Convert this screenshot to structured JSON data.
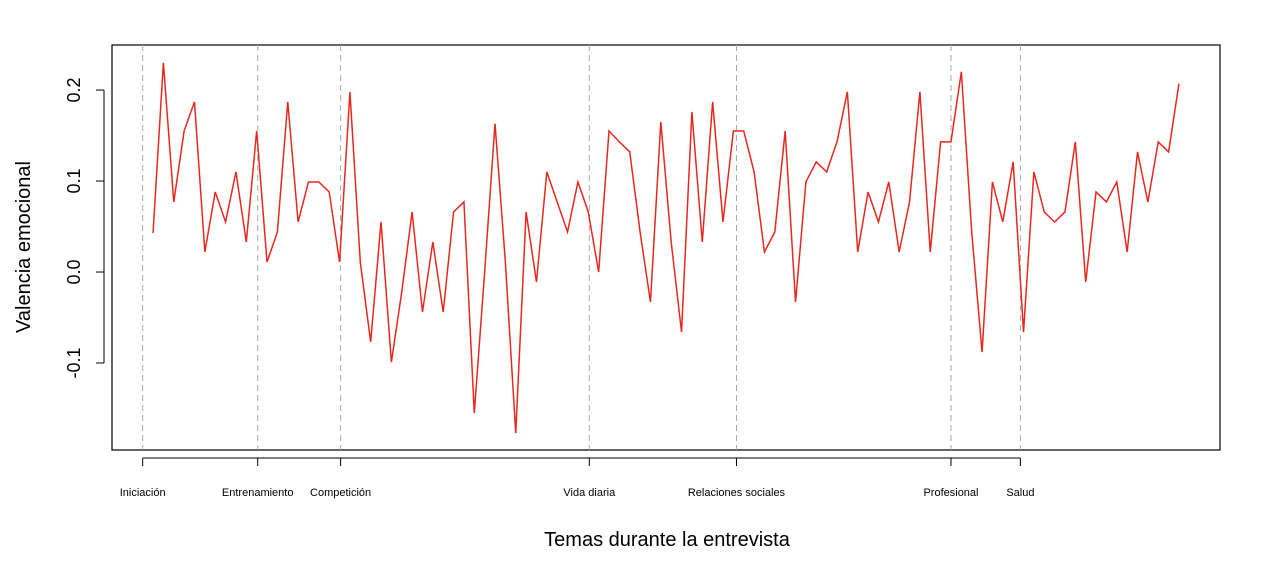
{
  "chart_data": {
    "type": "line",
    "xlabel": "Temas durante la entrevista",
    "ylabel": "Valencia emocional",
    "color": "#e8281f",
    "x": [
      1,
      2,
      3,
      4,
      5,
      6,
      7,
      8,
      9,
      10,
      11,
      12,
      13,
      14,
      15,
      16,
      17,
      18,
      19,
      20,
      21,
      22,
      23,
      24,
      25,
      26,
      27,
      28,
      29,
      30,
      31,
      32,
      33,
      34,
      35,
      36,
      37,
      38,
      39,
      40,
      41,
      42,
      43,
      44,
      45,
      46,
      47,
      48,
      49,
      50,
      51,
      52,
      53,
      54,
      55,
      56,
      57,
      58,
      59,
      60,
      61,
      62,
      63,
      64,
      65,
      66,
      67,
      68,
      69,
      70,
      71,
      72,
      73,
      74,
      75,
      76,
      77,
      78,
      79,
      80,
      81,
      82,
      83,
      84,
      85,
      86,
      87,
      88,
      89,
      90,
      91,
      92,
      93,
      94,
      95,
      96,
      97,
      98,
      99,
      100
    ],
    "values": [
      0.043,
      0.23,
      0.077,
      0.155,
      0.187,
      0.022,
      0.088,
      0.055,
      0.11,
      0.033,
      0.155,
      0.011,
      0.044,
      0.187,
      0.055,
      0.099,
      0.099,
      0.088,
      0.011,
      0.198,
      0.011,
      -0.077,
      0.055,
      -0.099,
      -0.022,
      0.066,
      -0.044,
      0.033,
      -0.044,
      0.066,
      0.077,
      -0.155,
      0.0,
      0.163,
      0.011,
      -0.177,
      0.066,
      -0.011,
      0.11,
      0.077,
      0.044,
      0.099,
      0.066,
      0.0,
      0.155,
      0.143,
      0.132,
      0.044,
      -0.033,
      0.165,
      0.033,
      -0.066,
      0.176,
      0.033,
      0.187,
      0.055,
      0.155,
      0.155,
      0.11,
      0.022,
      0.044,
      0.155,
      -0.033,
      0.099,
      0.121,
      0.11,
      0.143,
      0.198,
      0.022,
      0.088,
      0.055,
      0.099,
      0.022,
      0.077,
      0.198,
      0.022,
      0.143,
      0.143,
      0.22,
      0.044,
      -0.088,
      0.099,
      0.055,
      0.121,
      -0.066,
      0.11,
      0.066,
      0.055,
      0.066,
      0.143,
      -0.011,
      0.088,
      0.077,
      0.099,
      0.022,
      0.132,
      0.077,
      0.143,
      0.132,
      0.207
    ],
    "xlim": [
      -2.96,
      103.96
    ],
    "xticks": [
      {
        "value": 0,
        "label": "Iniciación"
      },
      {
        "value": 11.1,
        "label": "Entrenamiento"
      },
      {
        "value": 19.1,
        "label": "Competición"
      },
      {
        "value": 43.1,
        "label": "Vida diaria"
      },
      {
        "value": 57.3,
        "label": "Relaciones sociales"
      },
      {
        "value": 78,
        "label": "Profesional"
      },
      {
        "value": 84.7,
        "label": "Salud"
      }
    ],
    "ylim": [
      -0.1956,
      0.2495
    ],
    "yticks": [
      -0.1,
      {
        "value": 0,
        "label": "0.0"
      },
      0.1,
      0.2
    ],
    "grid": true
  }
}
